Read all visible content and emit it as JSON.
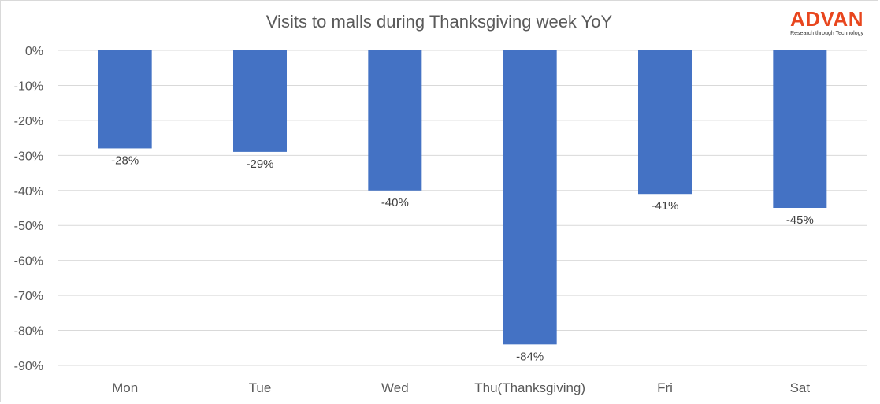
{
  "logo": {
    "name": "ADVAN",
    "tagline": "Research through Technology"
  },
  "chart_data": {
    "type": "bar",
    "title": "Visits to malls during Thanksgiving week YoY",
    "xlabel": "",
    "ylabel": "",
    "categories": [
      "Mon",
      "Tue",
      "Wed",
      "Thu(Thanksgiving)",
      "Fri",
      "Sat"
    ],
    "values": [
      -28,
      -29,
      -40,
      -84,
      -41,
      -45
    ],
    "data_labels": [
      "-28%",
      "-29%",
      "-40%",
      "-84%",
      "-41%",
      "-45%"
    ],
    "ylim": [
      -90,
      0
    ],
    "yticks": [
      0,
      -10,
      -20,
      -30,
      -40,
      -50,
      -60,
      -70,
      -80,
      -90
    ],
    "ytick_labels": [
      "0%",
      "-10%",
      "-20%",
      "-30%",
      "-40%",
      "-50%",
      "-60%",
      "-70%",
      "-80%",
      "-90%"
    ],
    "grid": true,
    "legend": "none",
    "bar_color": "#4472c4",
    "grid_color": "#d9d9d9"
  }
}
